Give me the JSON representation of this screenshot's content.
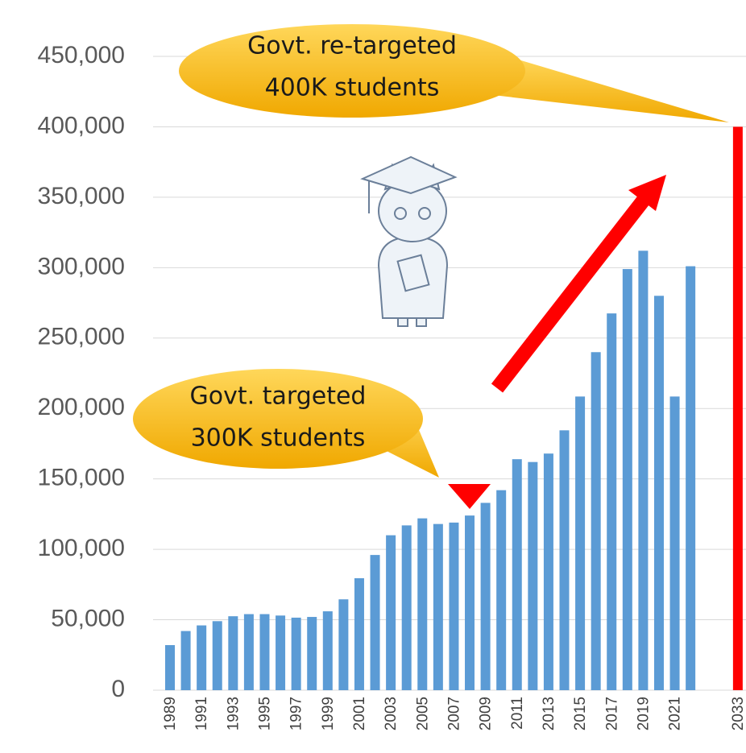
{
  "chart_data": {
    "type": "bar",
    "categories": [
      "1989",
      null,
      "1991",
      null,
      "1993",
      null,
      "1995",
      null,
      "1997",
      null,
      "1999",
      null,
      "2001",
      null,
      "2003",
      null,
      "2005",
      null,
      "2007",
      null,
      "2009",
      null,
      "2011",
      null,
      "2013",
      null,
      "2015",
      null,
      "2017",
      null,
      "2019",
      null,
      "2021",
      null,
      null,
      null,
      "2033"
    ],
    "series": [
      {
        "color": "#5b9bd5",
        "values": [
          32000,
          42000,
          46000,
          49000,
          52500,
          54000,
          54000,
          53000,
          51500,
          52000,
          56000,
          64500,
          79500,
          96000,
          110000,
          117000,
          122000,
          118000,
          119000,
          124000,
          133000,
          142000,
          164000,
          162000,
          168000,
          184500,
          208500,
          240000,
          267500,
          299000,
          312000,
          280000,
          208500,
          301000,
          null,
          null,
          null
        ]
      },
      {
        "color": "#ff0000",
        "values": [
          null,
          null,
          null,
          null,
          null,
          null,
          null,
          null,
          null,
          null,
          null,
          null,
          null,
          null,
          null,
          null,
          null,
          null,
          null,
          null,
          null,
          null,
          null,
          null,
          null,
          null,
          null,
          null,
          null,
          null,
          null,
          null,
          null,
          null,
          null,
          null,
          400000
        ]
      }
    ],
    "ylim": [
      0,
      450000
    ],
    "yticks": [
      0,
      {
        "value": 50000,
        "label": "50,000"
      },
      {
        "value": 100000,
        "label": "100,000"
      },
      {
        "value": 150000,
        "label": "150,000"
      },
      {
        "value": 200000,
        "label": "200,000"
      },
      {
        "value": 250000,
        "label": "250,000"
      },
      {
        "value": 300000,
        "label": "300,000"
      },
      {
        "value": 350000,
        "label": "350,000"
      },
      {
        "value": 400000,
        "label": "400,000"
      },
      {
        "value": 450000,
        "label": "450,000"
      }
    ],
    "grid": true,
    "annotations": [
      {
        "lines": [
          "Govt. re-targeted",
          "400K students"
        ]
      },
      {
        "lines": [
          "Govt. targeted",
          "300K students"
        ]
      }
    ]
  }
}
